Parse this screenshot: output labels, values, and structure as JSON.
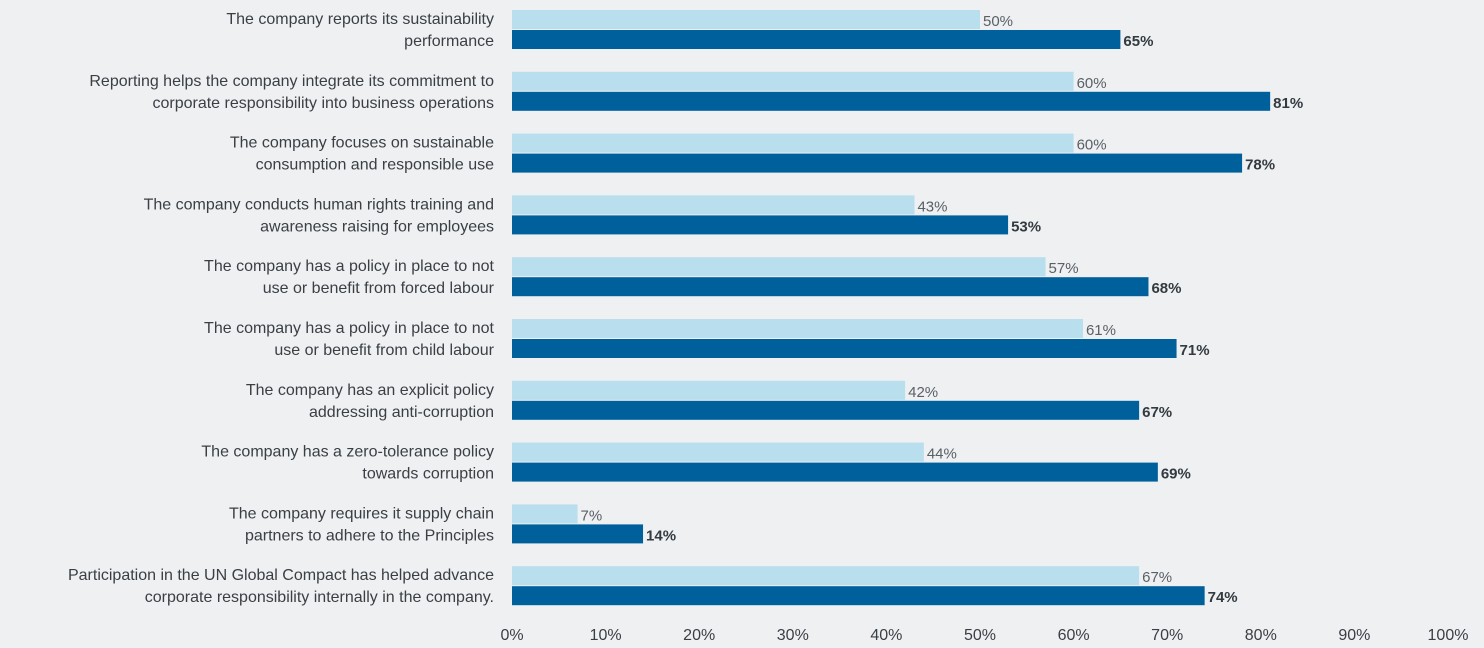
{
  "chart_data": {
    "type": "bar",
    "orientation": "horizontal",
    "categories": [
      [
        "The company reports its sustainability",
        "performance"
      ],
      [
        "Reporting helps the company integrate its commitment to",
        "corporate responsibility into business operations"
      ],
      [
        "The company focuses on sustainable",
        "consumption and responsible use"
      ],
      [
        "The company conducts human rights training and",
        "awareness raising for employees"
      ],
      [
        "The company has a policy in place to not",
        "use or benefit from forced labour"
      ],
      [
        "The company has a policy in place to not",
        "use or benefit from child labour"
      ],
      [
        "The company has an explicit policy",
        "addressing anti-corruption"
      ],
      [
        "The company has a zero-tolerance policy",
        "towards corruption"
      ],
      [
        "The company requires it supply chain",
        "partners to adhere to the Principles"
      ],
      [
        "Participation in the UN Global Compact has helped advance",
        "corporate responsibility internally in the company."
      ]
    ],
    "series": [
      {
        "color": "#b9deed",
        "values": [
          50,
          60,
          60,
          43,
          57,
          61,
          42,
          44,
          7,
          67
        ],
        "labels": [
          "50%",
          "60%",
          "60%",
          "43%",
          "57%",
          "61%",
          "42%",
          "44%",
          "7%",
          "67%"
        ]
      },
      {
        "color": "#00609c",
        "values": [
          65,
          81,
          78,
          53,
          68,
          71,
          67,
          69,
          14,
          74
        ],
        "labels": [
          "65%",
          "81%",
          "78%",
          "53%",
          "68%",
          "71%",
          "67%",
          "69%",
          "14%",
          "74%"
        ]
      }
    ],
    "xlim": [
      0,
      100
    ],
    "xticks": [
      "0%",
      "10%",
      "20%",
      "30%",
      "40%",
      "50%",
      "60%",
      "70%",
      "80%",
      "90%",
      "100%"
    ],
    "grid": false,
    "legend": false,
    "title": "",
    "xlabel": "",
    "ylabel": ""
  }
}
